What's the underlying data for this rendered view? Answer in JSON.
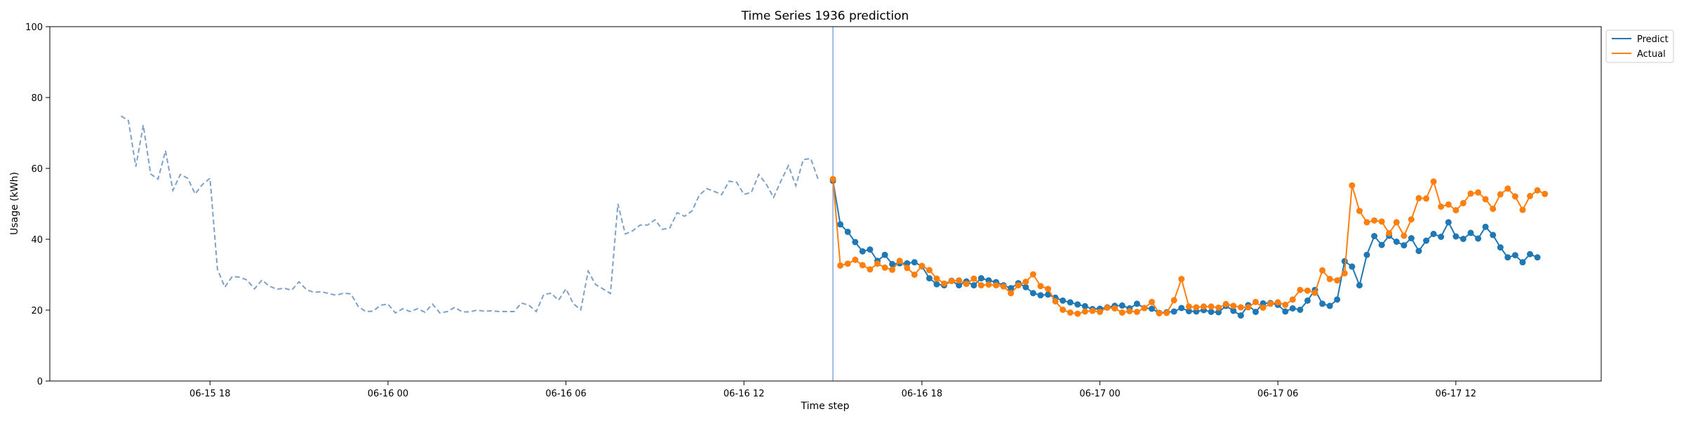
{
  "chart_data": {
    "type": "line",
    "title": "Time Series 1936 prediction",
    "xlabel": "Time step",
    "ylabel": "Usage (kWh)",
    "ylim": [
      0,
      100
    ],
    "yticks": [
      0,
      20,
      40,
      60,
      80,
      100
    ],
    "xticks": [
      {
        "hour": 18,
        "label": "06-15 18"
      },
      {
        "hour": 24,
        "label": "06-16 00"
      },
      {
        "hour": 30,
        "label": "06-16 06"
      },
      {
        "hour": 36,
        "label": "06-16 12"
      },
      {
        "hour": 42,
        "label": "06-16 18"
      },
      {
        "hour": 48,
        "label": "06-17 00"
      },
      {
        "hour": 54,
        "label": "06-17 06"
      },
      {
        "hour": 60,
        "label": "06-17 12"
      }
    ],
    "xlim_hours": [
      12.6,
      64.9
    ],
    "forecast_start_hour": 39.0,
    "step_hours": 0.25,
    "legend": {
      "position": "top-right",
      "entries": [
        "Predict",
        "Actual"
      ]
    },
    "colors": {
      "history": "#7fa0c8",
      "predict": "#1f77b4",
      "actual": "#ff7f0e",
      "forecast_line": "#6f8fcf"
    },
    "history": {
      "start_hour": 15.0,
      "values": [
        74.8,
        73.5,
        60.5,
        72.2,
        58.4,
        57.0,
        65.0,
        53.8,
        58.3,
        57.2,
        52.8,
        55.5,
        57.2,
        31.5,
        26.5,
        29.5,
        29.3,
        28.5,
        26.0,
        28.5,
        26.8,
        25.9,
        26.2,
        25.6,
        28.0,
        25.8,
        25.0,
        25.2,
        24.7,
        24.2,
        24.8,
        24.6,
        21.0,
        19.6,
        19.7,
        21.4,
        21.7,
        19.2,
        20.4,
        19.6,
        20.4,
        19.4,
        21.7,
        19.2,
        19.6,
        20.8,
        19.5,
        19.5,
        20.0,
        19.7,
        19.8,
        19.6,
        19.6,
        19.6,
        22.0,
        21.4,
        19.6,
        24.4,
        24.8,
        22.8,
        26.0,
        21.8,
        20.1,
        31.0,
        27.2,
        26.0,
        24.7,
        50.0,
        41.5,
        42.4,
        44.0,
        44.0,
        45.5,
        42.8,
        43.2,
        47.5,
        46.5,
        48.0,
        52.5,
        54.3,
        53.5,
        52.6,
        56.4,
        56.1,
        52.7,
        53.2,
        58.3,
        55.6,
        51.8,
        56.5,
        60.8,
        55.1,
        62.5,
        62.8,
        57.0
      ]
    },
    "series": [
      {
        "name": "Predict",
        "start_hour": 39.0,
        "values": [
          56.5,
          44.2,
          42.1,
          39.2,
          36.6,
          37.1,
          33.9,
          35.6,
          33.0,
          33.2,
          33.2,
          33.5,
          32.4,
          29.0,
          27.3,
          27.0,
          28.3,
          27.0,
          28.1,
          27.0,
          29.0,
          28.4,
          27.9,
          27.0,
          26.2,
          27.6,
          26.5,
          24.8,
          24.2,
          24.4,
          23.5,
          22.7,
          22.2,
          21.6,
          21.1,
          20.3,
          20.4,
          20.8,
          21.2,
          21.3,
          20.5,
          21.8,
          20.6,
          20.4,
          19.2,
          19.4,
          19.6,
          20.6,
          19.7,
          19.6,
          20.0,
          19.5,
          19.4,
          21.2,
          19.8,
          18.5,
          21.4,
          19.5,
          21.9,
          22.0,
          21.5,
          19.6,
          20.5,
          20.1,
          22.7,
          25.7,
          21.8,
          21.2,
          23.0,
          33.8,
          32.3,
          27.0,
          35.6,
          40.9,
          38.4,
          41.0,
          39.3,
          38.3,
          40.3,
          36.7,
          39.6,
          41.5,
          40.7,
          44.8,
          40.8,
          40.1,
          41.8,
          40.2,
          43.5,
          41.2,
          37.7,
          34.9,
          35.5,
          33.5,
          35.8,
          34.9
        ]
      },
      {
        "name": "Actual",
        "start_hour": 39.0,
        "values": [
          57.0,
          32.6,
          33.1,
          34.2,
          32.7,
          31.5,
          33.1,
          32.0,
          31.4,
          33.9,
          31.9,
          30.0,
          32.5,
          31.3,
          28.9,
          27.5,
          28.2,
          28.4,
          27.4,
          28.9,
          27.0,
          27.2,
          27.0,
          26.7,
          24.8,
          27.0,
          28.0,
          30.1,
          26.8,
          26.0,
          22.5,
          20.1,
          19.3,
          19.0,
          19.6,
          19.8,
          19.5,
          20.7,
          20.5,
          19.3,
          19.7,
          19.5,
          20.6,
          22.3,
          19.1,
          19.2,
          22.8,
          28.8,
          21.0,
          20.8,
          21.0,
          21.0,
          20.7,
          21.7,
          21.2,
          20.8,
          20.8,
          22.3,
          20.7,
          21.8,
          22.2,
          21.5,
          23.0,
          25.7,
          25.5,
          24.9,
          31.2,
          28.8,
          28.4,
          30.4,
          55.2,
          48.0,
          44.8,
          45.3,
          45.0,
          41.7,
          44.8,
          41.0,
          45.6,
          51.6,
          51.5,
          56.3,
          49.2,
          49.8,
          48.2,
          50.2,
          52.9,
          53.2,
          51.3,
          48.6,
          52.7,
          54.3,
          52.1,
          48.3,
          52.2,
          53.8,
          52.8
        ]
      }
    ]
  }
}
